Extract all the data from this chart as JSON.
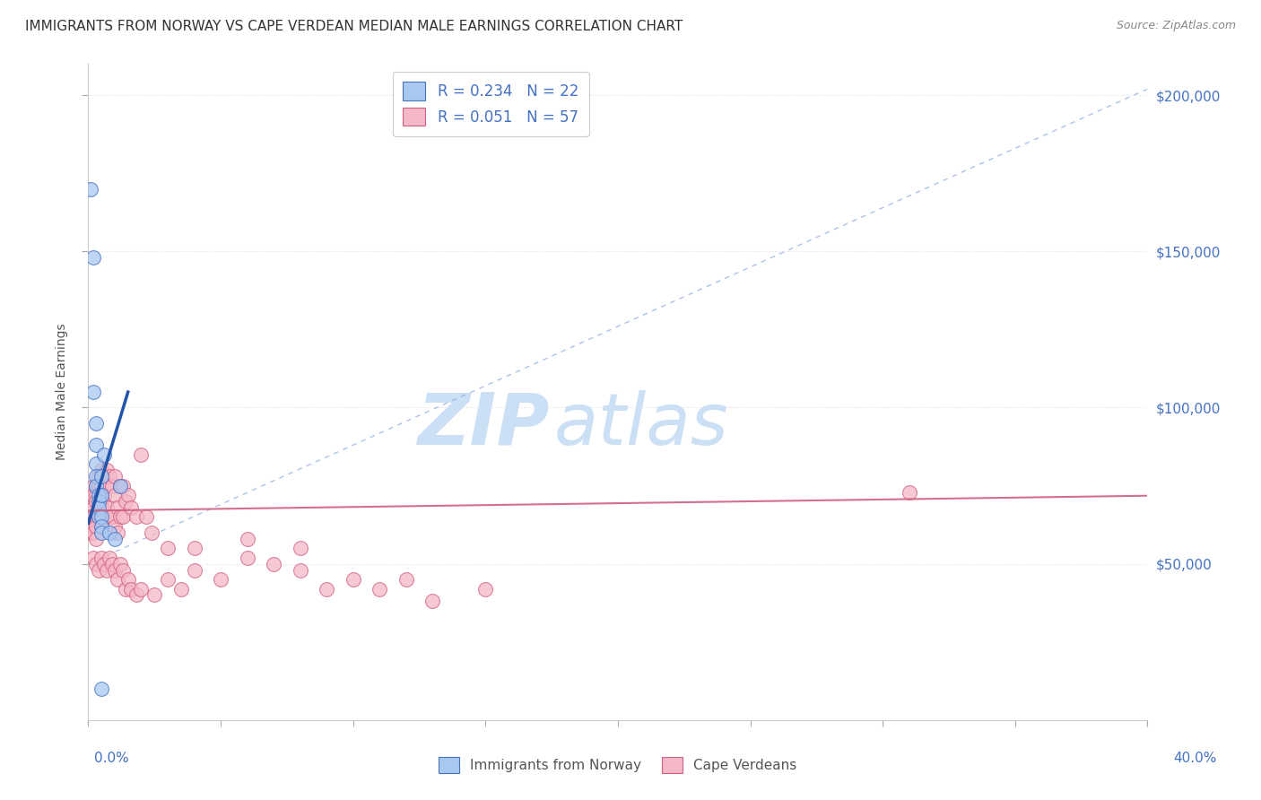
{
  "title": "IMMIGRANTS FROM NORWAY VS CAPE VERDEAN MEDIAN MALE EARNINGS CORRELATION CHART",
  "source": "Source: ZipAtlas.com",
  "ylabel": "Median Male Earnings",
  "xlim": [
    0.0,
    0.4
  ],
  "ylim": [
    0,
    210000
  ],
  "norway_color": "#a8c8f0",
  "norway_edge": "#4472c4",
  "cape_verde_color": "#f5b8c8",
  "cape_verde_edge": "#d06080",
  "norway_R": 0.234,
  "norway_N": 22,
  "cape_verde_R": 0.051,
  "cape_verde_N": 57,
  "watermark_zip": "ZIP",
  "watermark_atlas": "atlas",
  "watermark_color": "#cce0f5",
  "background_color": "#ffffff",
  "grid_color": "#e0e0e0",
  "title_fontsize": 11,
  "axis_label_color": "#4472c4",
  "norway_line_color": "#2255aa",
  "cape_verde_line_color": "#cc5577",
  "dash_color": "#88aadd",
  "norway_x": [
    0.001,
    0.002,
    0.002,
    0.003,
    0.003,
    0.003,
    0.003,
    0.003,
    0.004,
    0.004,
    0.004,
    0.004,
    0.005,
    0.005,
    0.005,
    0.005,
    0.005,
    0.006,
    0.008,
    0.01,
    0.012,
    0.005
  ],
  "norway_y": [
    170000,
    148000,
    105000,
    95000,
    88000,
    82000,
    78000,
    75000,
    72000,
    70000,
    68000,
    65000,
    65000,
    62000,
    60000,
    78000,
    72000,
    85000,
    60000,
    58000,
    75000,
    10000
  ],
  "cv_x": [
    0.001,
    0.001,
    0.001,
    0.001,
    0.002,
    0.002,
    0.002,
    0.002,
    0.002,
    0.002,
    0.003,
    0.003,
    0.003,
    0.003,
    0.003,
    0.003,
    0.004,
    0.004,
    0.004,
    0.004,
    0.005,
    0.005,
    0.005,
    0.005,
    0.005,
    0.006,
    0.006,
    0.006,
    0.007,
    0.007,
    0.007,
    0.008,
    0.008,
    0.009,
    0.009,
    0.01,
    0.01,
    0.01,
    0.011,
    0.011,
    0.012,
    0.012,
    0.013,
    0.013,
    0.014,
    0.015,
    0.016,
    0.018,
    0.02,
    0.022,
    0.024,
    0.03,
    0.04,
    0.06,
    0.08,
    0.12,
    0.31
  ],
  "cv_y": [
    68000,
    65000,
    63000,
    60000,
    75000,
    72000,
    68000,
    65000,
    62000,
    60000,
    75000,
    72000,
    70000,
    65000,
    62000,
    58000,
    78000,
    75000,
    68000,
    65000,
    80000,
    75000,
    70000,
    68000,
    62000,
    78000,
    72000,
    65000,
    80000,
    75000,
    68000,
    78000,
    65000,
    75000,
    65000,
    78000,
    72000,
    62000,
    68000,
    60000,
    75000,
    65000,
    75000,
    65000,
    70000,
    72000,
    68000,
    65000,
    85000,
    65000,
    60000,
    55000,
    55000,
    58000,
    55000,
    45000,
    73000
  ],
  "cv_extra_x": [
    0.002,
    0.003,
    0.004,
    0.005,
    0.006,
    0.007,
    0.008,
    0.009,
    0.01,
    0.011,
    0.012,
    0.013,
    0.014,
    0.015,
    0.016,
    0.018,
    0.02,
    0.025,
    0.03,
    0.035,
    0.04,
    0.05,
    0.06,
    0.07,
    0.08,
    0.09,
    0.1,
    0.11,
    0.13,
    0.15
  ],
  "cv_extra_y": [
    52000,
    50000,
    48000,
    52000,
    50000,
    48000,
    52000,
    50000,
    48000,
    45000,
    50000,
    48000,
    42000,
    45000,
    42000,
    40000,
    42000,
    40000,
    45000,
    42000,
    48000,
    45000,
    52000,
    50000,
    48000,
    42000,
    45000,
    42000,
    38000,
    42000
  ]
}
